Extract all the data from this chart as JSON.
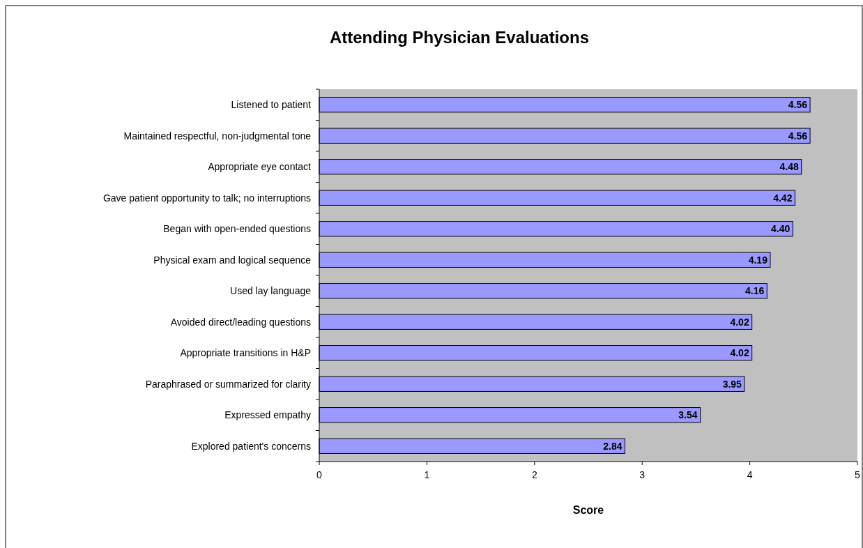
{
  "chart_data": {
    "type": "bar",
    "orientation": "horizontal",
    "title": "Attending Physician Evaluations",
    "xlabel": "Score",
    "categories": [
      "Listened to patient",
      "Maintained respectful, non-judgmental tone",
      "Appropriate eye contact",
      "Gave patient opportunity to talk; no interruptions",
      "Began with open-ended questions",
      "Physical exam and logical sequence",
      "Used lay language",
      "Avoided direct/leading questions",
      "Appropriate transitions in H&P",
      "Paraphrased or summarized for clarity",
      "Expressed empathy",
      "Explored patient's concerns"
    ],
    "values": [
      4.56,
      4.56,
      4.48,
      4.42,
      4.4,
      4.19,
      4.16,
      4.02,
      4.02,
      3.95,
      3.54,
      2.84
    ],
    "value_labels": [
      "4.56",
      "4.56",
      "4.48",
      "4.42",
      "4.40",
      "4.19",
      "4.16",
      "4.02",
      "4.02",
      "3.95",
      "3.54",
      "2.84"
    ],
    "color": "#9999ff",
    "xlim": [
      0,
      5
    ],
    "xticks": [
      0,
      1,
      2,
      3,
      4,
      5
    ],
    "grid": false
  }
}
